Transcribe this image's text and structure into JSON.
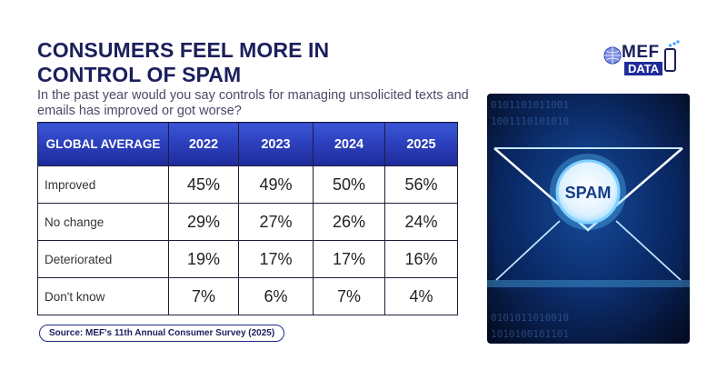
{
  "title": {
    "line1": "CONSUMERS FEEL MORE IN",
    "line2": "CONTROL OF SPAM"
  },
  "subtitle": "In the past year would you say controls for managing unsolicited texts and emails has improved or got worse?",
  "chart_data": {
    "type": "table",
    "title": "CONSUMERS FEEL MORE IN CONTROL OF SPAM",
    "header_label": "GLOBAL AVERAGE",
    "columns": [
      "2022",
      "2023",
      "2024",
      "2025"
    ],
    "rows": [
      {
        "label": "Improved",
        "values": [
          "45%",
          "49%",
          "50%",
          "56%"
        ]
      },
      {
        "label": "No change",
        "values": [
          "29%",
          "27%",
          "26%",
          "24%"
        ]
      },
      {
        "label": "Deteriorated",
        "values": [
          "19%",
          "17%",
          "17%",
          "16%"
        ]
      },
      {
        "label": "Don't know",
        "values": [
          "7%",
          "6%",
          "7%",
          "4%"
        ]
      }
    ]
  },
  "source": "Source: MEF's 11th Annual Consumer Survey (2025)",
  "logo": {
    "name": "MEF",
    "sub": "DATA"
  },
  "hero": {
    "badge_text": "SPAM",
    "icon": "envelope-spam-icon"
  },
  "colors": {
    "header_blue": "#2a3cb8",
    "title_navy": "#1b1f5c",
    "hero_dark": "#061330",
    "hero_glow": "#59c7ff"
  }
}
